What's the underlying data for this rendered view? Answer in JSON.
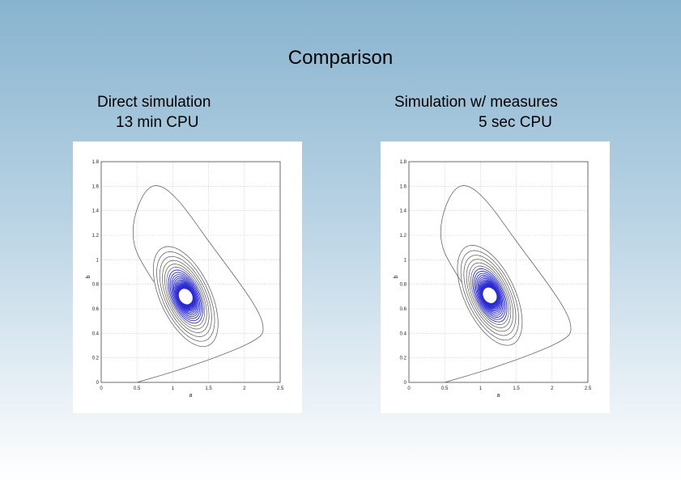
{
  "slide": {
    "title": "Comparison"
  },
  "captions": {
    "left_line1": "Direct simulation",
    "left_line2": "13 min CPU",
    "right_line1": "Simulation w/ measures",
    "right_line2": "5 sec CPU"
  },
  "chart_data": [
    {
      "type": "line",
      "title": "",
      "xlabel": "a",
      "ylabel": "b",
      "xlim": [
        0,
        2.5
      ],
      "ylim": [
        0,
        1.8
      ],
      "xticks": [
        "0",
        "0.5",
        "1",
        "1.5",
        "2",
        "2.5"
      ],
      "yticks": [
        "0",
        "0.2",
        "0.4",
        "0.6",
        "0.8",
        "1",
        "1.2",
        "1.4",
        "1.6",
        "1.8"
      ],
      "grid": true,
      "series": [
        {
          "start": [
            0.5,
            0.0
          ],
          "equilibrium": [
            1.18,
            0.7
          ],
          "x_max": 2.28,
          "y_max": 1.62,
          "line_color": "#555555",
          "core_color": "#2a2ad0"
        }
      ]
    },
    {
      "type": "line",
      "title": "",
      "xlabel": "a",
      "ylabel": "b",
      "xlim": [
        0,
        2.5
      ],
      "ylim": [
        0,
        1.8
      ],
      "xticks": [
        "0",
        "0.5",
        "1",
        "1.5",
        "2",
        "2.5"
      ],
      "yticks": [
        "0",
        "0.2",
        "0.4",
        "0.6",
        "0.8",
        "1",
        "1.2",
        "1.4",
        "1.6",
        "1.8"
      ],
      "grid": true,
      "series": [
        {
          "start": [
            0.5,
            0.0
          ],
          "equilibrium": [
            1.13,
            0.71
          ],
          "x_max": 2.28,
          "y_max": 1.62,
          "line_color": "#555555",
          "core_color": "#2a2ad0"
        }
      ]
    }
  ]
}
